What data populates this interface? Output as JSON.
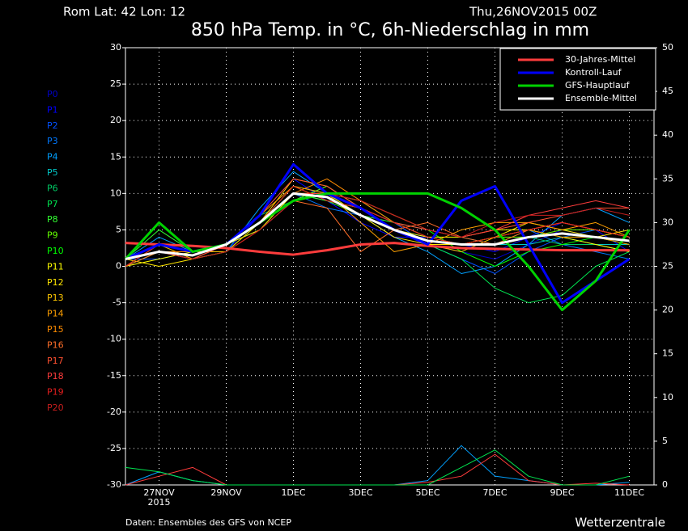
{
  "chart_data": {
    "type": "line",
    "location": "Rom   Lat: 42 Lon: 12",
    "date": "Thu,26NOV2015 00Z",
    "title": "850 hPa Temp. in °C, 6h-Niederschlag in mm",
    "source": "Daten: Ensembles des GFS von NCEP",
    "brand": "Wetterzentrale",
    "x_year_label": "2015",
    "categories": [
      null,
      "27NOV",
      null,
      "29NOV",
      null,
      "1DEC",
      null,
      "3DEC",
      null,
      "5DEC",
      null,
      "7DEC",
      null,
      "9DEC",
      null,
      "11DEC"
    ],
    "ylim": [
      -30,
      30
    ],
    "yticks": [
      -30,
      -25,
      -20,
      -15,
      -10,
      -5,
      0,
      5,
      10,
      15,
      20,
      25,
      30
    ],
    "y2lim": [
      0,
      50
    ],
    "y2ticks": [
      0,
      5,
      10,
      15,
      20,
      25,
      30,
      35,
      40,
      45,
      50
    ],
    "grid": true,
    "legend": "upper right",
    "members": [
      {
        "name": "P0",
        "color": "#0000c8",
        "values": [
          1,
          2,
          1,
          3,
          6,
          11,
          10,
          7,
          5,
          3,
          2,
          1,
          3,
          5,
          4,
          3
        ]
      },
      {
        "name": "P1",
        "color": "#0000ff",
        "values": [
          0,
          3,
          2,
          2,
          7,
          12,
          9,
          6,
          4,
          4,
          3,
          2,
          4,
          6,
          5,
          2
        ]
      },
      {
        "name": "P2",
        "color": "#0050ff",
        "values": [
          1,
          1,
          2,
          3,
          5,
          9,
          11,
          8,
          6,
          3,
          1,
          -1,
          2,
          4,
          5,
          4
        ]
      },
      {
        "name": "P3",
        "color": "#0078ff",
        "values": [
          0,
          2,
          1,
          3,
          6,
          10,
          8,
          7,
          5,
          4,
          3,
          4,
          5,
          3,
          2,
          1
        ]
      },
      {
        "name": "P4",
        "color": "#00a0ff",
        "values": [
          1,
          4,
          2,
          2,
          8,
          13,
          10,
          7,
          4,
          2,
          -1,
          0,
          3,
          7,
          8,
          6
        ]
      },
      {
        "name": "P5",
        "color": "#00c8c8",
        "values": [
          1,
          2,
          1,
          3,
          6,
          10,
          9,
          8,
          6,
          5,
          4,
          3,
          3,
          4,
          3,
          3
        ]
      },
      {
        "name": "P6",
        "color": "#00c864",
        "values": [
          0,
          3,
          2,
          3,
          7,
          9,
          10,
          9,
          6,
          4,
          3,
          3,
          4,
          3,
          3,
          2
        ]
      },
      {
        "name": "P7",
        "color": "#00e650",
        "values": [
          1,
          2,
          1,
          2,
          6,
          11,
          10,
          7,
          5,
          3,
          1,
          -3,
          -5,
          -4,
          0,
          2
        ]
      },
      {
        "name": "P8",
        "color": "#32ff32",
        "values": [
          1,
          5,
          2,
          3,
          5,
          10,
          9,
          7,
          6,
          4,
          3,
          3,
          5,
          4,
          4,
          3
        ]
      },
      {
        "name": "P9",
        "color": "#64ff00",
        "values": [
          0,
          2,
          2,
          3,
          6,
          9,
          11,
          8,
          5,
          3,
          3,
          4,
          4,
          5,
          5,
          4
        ]
      },
      {
        "name": "P10",
        "color": "#00ff00",
        "values": [
          1,
          3,
          1,
          2,
          6,
          10,
          10,
          9,
          7,
          5,
          2,
          0,
          2,
          3,
          4,
          3
        ]
      },
      {
        "name": "P11",
        "color": "#ffff00",
        "values": [
          0,
          1,
          2,
          3,
          6,
          11,
          9,
          8,
          5,
          4,
          4,
          5,
          5,
          4,
          3,
          2
        ]
      },
      {
        "name": "P12",
        "color": "#ffe600",
        "values": [
          1,
          0,
          1,
          3,
          5,
          10,
          10,
          7,
          4,
          3,
          3,
          4,
          6,
          5,
          4,
          5
        ]
      },
      {
        "name": "P13",
        "color": "#ffc800",
        "values": [
          1,
          2,
          2,
          2,
          6,
          12,
          11,
          8,
          5,
          3,
          2,
          4,
          5,
          6,
          5,
          4
        ]
      },
      {
        "name": "P14",
        "color": "#ffa000",
        "values": [
          0,
          3,
          1,
          3,
          7,
          11,
          10,
          6,
          2,
          3,
          5,
          6,
          6,
          5,
          6,
          4
        ]
      },
      {
        "name": "P15",
        "color": "#ff8c00",
        "values": [
          1,
          2,
          2,
          3,
          6,
          10,
          12,
          9,
          6,
          4,
          3,
          4,
          5,
          4,
          4,
          3
        ]
      },
      {
        "name": "P16",
        "color": "#ff6e28",
        "values": [
          0,
          2,
          1,
          2,
          5,
          9,
          8,
          2,
          5,
          6,
          4,
          3,
          5,
          6,
          5,
          4
        ]
      },
      {
        "name": "P17",
        "color": "#ff5030",
        "values": [
          1,
          3,
          2,
          3,
          7,
          12,
          11,
          8,
          6,
          5,
          4,
          5,
          6,
          7,
          8,
          8
        ]
      },
      {
        "name": "P18",
        "color": "#ff3c3c",
        "values": [
          1,
          2,
          1,
          3,
          6,
          10,
          10,
          9,
          7,
          5,
          4,
          5,
          7,
          8,
          9,
          8
        ]
      },
      {
        "name": "P19",
        "color": "#e61e1e",
        "values": [
          0,
          3,
          2,
          3,
          6,
          11,
          9,
          8,
          6,
          4,
          3,
          4,
          5,
          6,
          5,
          4
        ]
      },
      {
        "name": "P20",
        "color": "#c81e1e",
        "values": [
          1,
          2,
          1,
          2,
          5,
          9,
          10,
          9,
          7,
          5,
          4,
          6,
          7,
          7,
          8,
          7
        ]
      }
    ],
    "precipitation": [
      {
        "color": "#00a0ff",
        "axis": "y2",
        "values": [
          0,
          1.5,
          0.5,
          0,
          0,
          0,
          0,
          0,
          0,
          0.5,
          4.5,
          1,
          0.5,
          0,
          0,
          0.3
        ]
      },
      {
        "color": "#ff3c3c",
        "axis": "y2",
        "values": [
          0,
          1,
          2,
          0,
          0,
          0,
          0,
          0,
          0,
          0.3,
          1,
          3.5,
          0.5,
          0,
          0.2,
          0
        ]
      },
      {
        "color": "#00e650",
        "axis": "y2",
        "values": [
          2,
          1.5,
          0.5,
          0,
          0,
          0,
          0,
          0,
          0,
          0,
          2,
          4,
          1,
          0,
          0,
          1
        ]
      }
    ],
    "series": [
      {
        "name": "30-Jahres-Mittel",
        "color": "#ff3c3c",
        "values": [
          3.2,
          3,
          2.8,
          2.5,
          2,
          1.6,
          2.2,
          3,
          3.2,
          2.8,
          2.5,
          2.4,
          2.3,
          2.2,
          2.2,
          2.2
        ]
      },
      {
        "name": "Kontroll-Lauf",
        "color": "#0000ff",
        "values": [
          1,
          3,
          2,
          3,
          7,
          14,
          10,
          8,
          5,
          3,
          9,
          11,
          3,
          -5,
          -2,
          1
        ]
      },
      {
        "name": "GFS-Hauptlauf",
        "color": "#00d200",
        "values": [
          1,
          6,
          2,
          3,
          6,
          9,
          10,
          10,
          10,
          10,
          8,
          5,
          0,
          -6,
          -2,
          5
        ]
      },
      {
        "name": "Ensemble-Mittel",
        "color": "#ffffff",
        "values": [
          1,
          2,
          1.5,
          3,
          6,
          10,
          9.5,
          7,
          5,
          3.5,
          3,
          3,
          4,
          4.5,
          4,
          3.5
        ]
      }
    ]
  }
}
